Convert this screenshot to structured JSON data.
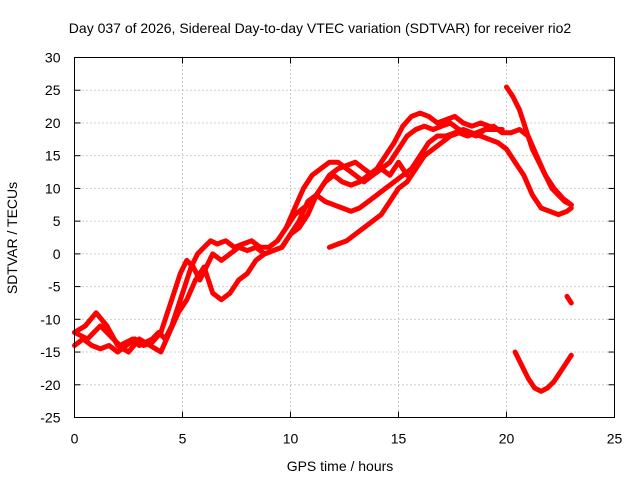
{
  "chart_data": {
    "type": "line",
    "title": "Day 037 of 2026, Sidereal Day-to-day VTEC variation (SDTVAR) for receiver rio2",
    "xlabel": "GPS time / hours",
    "ylabel": "SDTVAR / TECUs",
    "xlim": [
      0,
      25
    ],
    "ylim": [
      -25,
      30
    ],
    "xticks": [
      0,
      5,
      10,
      15,
      20,
      25
    ],
    "yticks": [
      -25,
      -20,
      -15,
      -10,
      -5,
      0,
      5,
      10,
      15,
      20,
      25,
      30
    ],
    "grid": true,
    "legend": "none",
    "color": "#ff0000",
    "series": [
      {
        "x": [
          0.0,
          0.3,
          0.6,
          0.9,
          1.2,
          1.5,
          1.8,
          2.1,
          2.4,
          2.7,
          3.0,
          3.3,
          3.6,
          3.9,
          4.2,
          4.5,
          4.8,
          5.1,
          5.4,
          5.7,
          6.0,
          6.3,
          6.6,
          7.0,
          7.4,
          7.8,
          8.2,
          8.6,
          9.0,
          9.4,
          9.8,
          10.2,
          10.6,
          11.0,
          11.4,
          11.8,
          12.2,
          12.6,
          13.0,
          13.4,
          13.8,
          14.2,
          14.6,
          15.0,
          15.4,
          15.8,
          16.2,
          16.6,
          17.0,
          17.4,
          17.8,
          18.2,
          18.6,
          19.0,
          19.4,
          19.8
        ],
        "y": [
          -12,
          -12.5,
          -13,
          -12,
          -11,
          -12,
          -13,
          -14,
          -13.5,
          -13,
          -14,
          -13.5,
          -13,
          -12,
          -13,
          -11,
          -8,
          -5,
          -2,
          0,
          1,
          2,
          1.5,
          2,
          1,
          1.5,
          2,
          1,
          1,
          2,
          4,
          6,
          7,
          8,
          10,
          12,
          13,
          13.5,
          14,
          13,
          12,
          13,
          14,
          16,
          18,
          19,
          19.5,
          19,
          19.5,
          20,
          19,
          18.5,
          18,
          19,
          19,
          19
        ]
      },
      {
        "x": [
          0.0,
          0.4,
          0.8,
          1.2,
          1.6,
          2.0,
          2.4,
          2.8,
          3.2,
          3.6,
          4.0,
          4.3,
          4.6,
          4.9,
          5.2,
          5.5,
          5.8,
          6.1,
          6.4,
          6.8,
          7.2,
          7.6,
          8.0,
          8.4,
          8.8,
          9.2,
          9.6,
          10.0,
          10.4,
          10.8,
          11.2,
          11.6,
          12.0,
          12.4,
          12.8,
          13.2,
          13.6,
          14.0,
          14.4,
          14.8,
          15.2,
          15.6,
          16.0,
          16.4,
          16.8,
          17.2,
          17.6,
          18.0,
          18.4,
          18.8,
          19.2,
          19.6
        ],
        "y": [
          -14,
          -13,
          -14,
          -14.5,
          -14,
          -15,
          -14,
          -13,
          -14,
          -13.5,
          -12,
          -9,
          -6,
          -3,
          -1,
          -2,
          -4,
          -2,
          0,
          -1,
          0,
          1,
          0.5,
          1,
          0,
          0.5,
          1,
          3,
          4,
          6,
          9,
          11,
          12,
          11,
          10.5,
          11,
          12,
          13,
          15,
          17,
          19.5,
          21,
          21.5,
          21,
          20,
          20.5,
          21,
          20,
          19.5,
          20,
          19.5,
          19
        ]
      },
      {
        "x": [
          0.0,
          0.5,
          1.0,
          1.5,
          2.0,
          2.5,
          3.0,
          3.5,
          4.0,
          4.4,
          4.8,
          5.2,
          5.6,
          6.0,
          6.4,
          6.8,
          7.2,
          7.6,
          8.0,
          8.4,
          8.8,
          9.2,
          9.6,
          10.0,
          10.4,
          10.8,
          11.2,
          11.6,
          12.0,
          12.4,
          12.8,
          13.2,
          13.6,
          14.0,
          14.4,
          14.8,
          15.2,
          15.6,
          16.0,
          16.4,
          16.8,
          17.2,
          17.6,
          18.0,
          18.4,
          18.8,
          19.2,
          19.6,
          20.0,
          20.4,
          20.8,
          21.2,
          21.6,
          22.0,
          22.4,
          22.8,
          23.0
        ],
        "y": [
          -12,
          -11,
          -9,
          -11,
          -14,
          -15,
          -13,
          -14,
          -15,
          -12,
          -9,
          -7,
          -4,
          -2,
          -6,
          -7,
          -6,
          -4,
          -3,
          -1,
          0,
          0.5,
          1,
          3,
          5,
          8,
          9,
          8,
          7.5,
          7,
          6.5,
          7,
          8,
          9,
          10,
          11,
          12,
          13,
          15,
          17,
          18,
          18,
          18.5,
          19,
          18.5,
          18,
          17.5,
          17,
          16,
          14,
          12,
          9,
          7,
          6.5,
          6,
          6.5,
          7
        ]
      },
      {
        "x": [
          20.0,
          20.3,
          20.6,
          20.9,
          21.2,
          21.5,
          21.8,
          22.1,
          22.4,
          22.7,
          23.0
        ],
        "y": [
          25.5,
          24,
          22,
          19,
          16,
          14,
          12,
          10,
          9,
          8,
          7.5
        ]
      },
      {
        "x": [
          9.8,
          10.2,
          10.6,
          11.0,
          11.4,
          11.8,
          12.2,
          12.6,
          13.0,
          13.4,
          13.8,
          14.2,
          14.6,
          15.0,
          15.4
        ],
        "y": [
          4,
          7,
          10,
          12,
          13,
          14,
          14,
          13,
          12,
          11,
          12,
          13,
          12,
          14,
          12
        ]
      },
      {
        "x": [
          11.8,
          12.2,
          12.6,
          13.0,
          13.4,
          13.8,
          14.2,
          14.6,
          15.0,
          15.4,
          15.8,
          16.2,
          16.6,
          17.0,
          17.4,
          17.8,
          18.2,
          18.6,
          19.0,
          19.4,
          19.8,
          20.2,
          20.6,
          21.0,
          21.4,
          21.8,
          22.2,
          22.6,
          23.0
        ],
        "y": [
          1,
          1.5,
          2,
          3,
          4,
          5,
          6,
          8,
          10,
          11,
          13,
          15,
          16,
          17,
          18,
          18.5,
          18,
          18.5,
          19,
          19.5,
          18.5,
          18.5,
          19,
          18,
          15,
          12,
          10,
          8.5,
          7.5
        ]
      },
      {
        "x": [
          20.4,
          20.7,
          21.0,
          21.3,
          21.6,
          21.9,
          22.2,
          22.5,
          22.8,
          23.0
        ],
        "y": [
          -15,
          -17,
          -19,
          -20.5,
          -21,
          -20.5,
          -19.5,
          -18,
          -16.5,
          -15.5
        ]
      },
      {
        "x": [
          22.8,
          23.0
        ],
        "y": [
          -6.5,
          -7.5
        ]
      }
    ]
  }
}
